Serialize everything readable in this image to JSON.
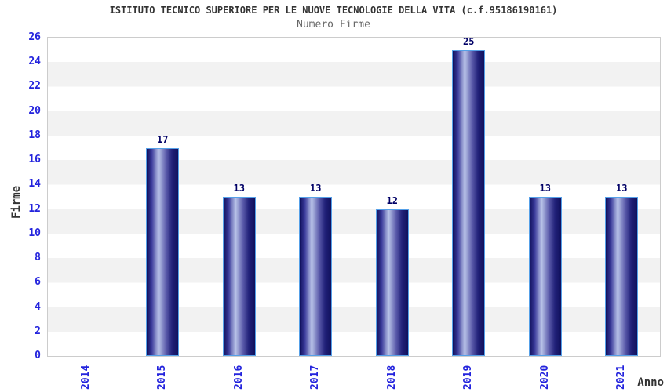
{
  "chart_data": {
    "type": "bar",
    "title": "ISTITUTO TECNICO SUPERIORE PER LE NUOVE TECNOLOGIE DELLA VITA (c.f.95186190161)",
    "subtitle": "Numero Firme",
    "xlabel": "Anno",
    "ylabel": "Firme",
    "categories": [
      "2014",
      "2015",
      "2016",
      "2017",
      "2018",
      "2019",
      "2020",
      "2021"
    ],
    "values": [
      0,
      17,
      13,
      13,
      12,
      25,
      13,
      13
    ],
    "ylim": [
      0,
      26
    ],
    "ytick_step": 2,
    "grid": "alternating horizontal bands, 2-unit stripes",
    "legend_position": "none"
  },
  "colors": {
    "tick_label": "#2424dd",
    "value_label": "#000066",
    "title_text": "#333333",
    "subtitle_text": "#666666",
    "axis_title_text": "#333333",
    "plot_border": "#cccccc",
    "band_gray": "#f2f2f2",
    "band_white": "#ffffff",
    "bar_dark": "#10105c",
    "bar_light": "#b9c3e8",
    "bar_border": "#55a0e8"
  }
}
